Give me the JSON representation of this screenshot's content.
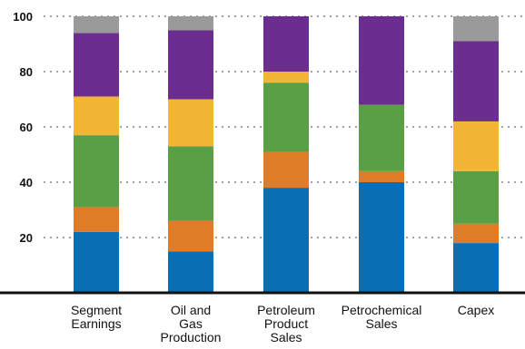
{
  "chart_data": {
    "type": "bar",
    "stacked": true,
    "categories": [
      [
        "Segment",
        "Earnings"
      ],
      [
        "Oil and",
        "Gas",
        "Production"
      ],
      [
        "Petroleum",
        "Product",
        "Sales"
      ],
      [
        "Petrochemical",
        "Sales"
      ],
      [
        "Capex"
      ]
    ],
    "series": [
      {
        "color": "#0a6eb4",
        "values": [
          22,
          15,
          38,
          40,
          18
        ]
      },
      {
        "color": "#e07b27",
        "values": [
          9,
          11,
          13,
          4,
          7
        ]
      },
      {
        "color": "#5a9e45",
        "values": [
          26,
          27,
          25,
          24,
          19
        ]
      },
      {
        "color": "#f2b535",
        "values": [
          14,
          17,
          4,
          0,
          18
        ]
      },
      {
        "color": "#6b2d8f",
        "values": [
          23,
          25,
          20,
          32,
          29
        ]
      },
      {
        "color": "#9a9a9a",
        "values": [
          6,
          5,
          0,
          0,
          9
        ]
      }
    ],
    "yticks": [
      "20",
      "40",
      "60",
      "80",
      "100"
    ],
    "ylim": [
      0,
      100
    ],
    "grid": true,
    "legend": "none"
  }
}
